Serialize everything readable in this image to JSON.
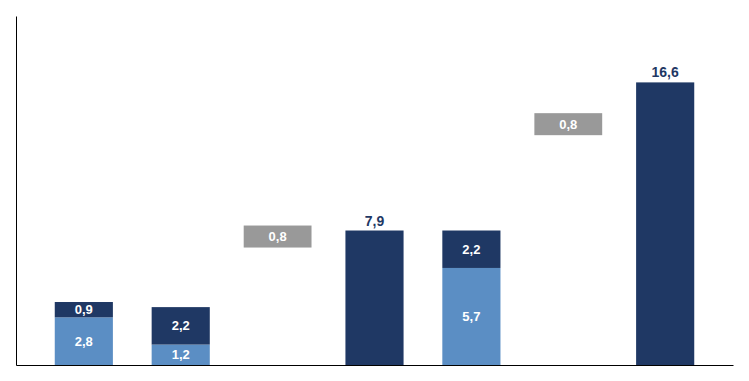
{
  "chart_data": {
    "type": "bar",
    "stacked": true,
    "data_labels": true,
    "tick_labels": false,
    "categories": [
      null,
      null,
      null,
      null,
      null,
      null,
      null
    ],
    "series": [
      {
        "color": "#5b8ec4",
        "values": [
          2.8,
          1.2,
          null,
          null,
          5.7,
          null,
          null
        ],
        "value_labels": [
          "2,8",
          "1,2",
          null,
          null,
          "5,7",
          null,
          null
        ]
      },
      {
        "color": "#1f3864",
        "values": [
          0.9,
          2.2,
          null,
          7.9,
          2.2,
          null,
          16.6
        ],
        "value_labels": [
          "0,9",
          "2,2",
          null,
          "7,9",
          "2,2",
          null,
          "16,6"
        ]
      }
    ],
    "annotations": [
      {
        "text": "0,8",
        "x": 2,
        "y": 6.9,
        "color": "#999999"
      },
      {
        "text": "0,8",
        "x": 5,
        "y": 13.5,
        "color": "#999999"
      }
    ],
    "ylim": [
      0,
      20.5
    ]
  }
}
